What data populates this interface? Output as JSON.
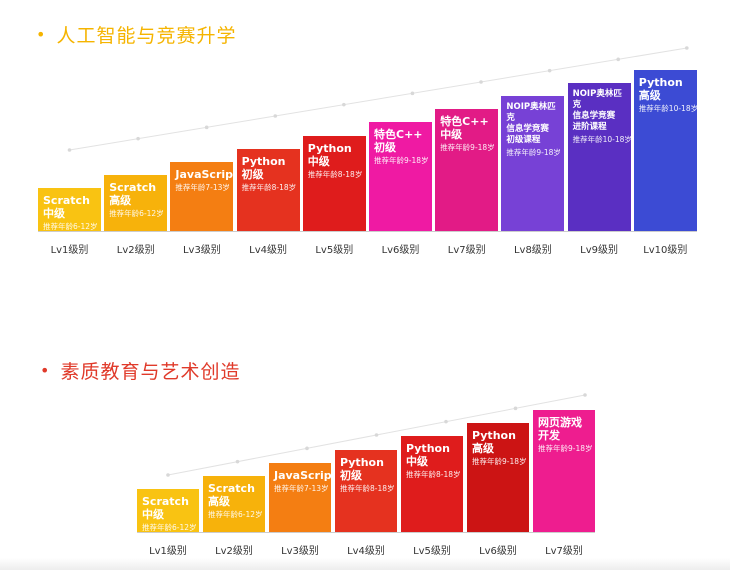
{
  "sections": [
    {
      "title": "人工智能与竞赛升学",
      "title_color": "#f5b400",
      "steps": [
        {
          "name": "Scratch\n中级",
          "age": "推荐年龄6-12岁",
          "color": "#f9c312",
          "level": "Lv1级别"
        },
        {
          "name": "Scratch\n高级",
          "age": "推荐年龄6-12岁",
          "color": "#f7b20b",
          "level": "Lv2级别"
        },
        {
          "name": "JavaScript",
          "age": "推荐年龄7-13岁",
          "color": "#f47e12",
          "level": "Lv3级别"
        },
        {
          "name": "Python\n初级",
          "age": "推荐年龄8-18岁",
          "color": "#e5321f",
          "level": "Lv4级别"
        },
        {
          "name": "Python\n中级",
          "age": "推荐年龄8-18岁",
          "color": "#df1c1c",
          "level": "Lv5级别"
        },
        {
          "name": "特色C++\n初级",
          "age": "推荐年龄9-18岁",
          "color": "#ef1aa3",
          "level": "Lv6级别"
        },
        {
          "name": "特色C++\n中级",
          "age": "推荐年龄9-18岁",
          "color": "#e21b86",
          "level": "Lv7级别"
        },
        {
          "name": "NOIP奥林匹克\n信息学竞赛\n初级课程",
          "age": "推荐年龄9-18岁",
          "color": "#7741d6",
          "level": "Lv8级别"
        },
        {
          "name": "NOIP奥林匹克\n信息学竞赛\n进阶课程",
          "age": "推荐年龄10-18岁",
          "color": "#5a2fc2",
          "level": "Lv9级别"
        },
        {
          "name": "Python\n高级",
          "age": "推荐年龄10-18岁",
          "color": "#3c4bd4",
          "level": "Lv10级别"
        }
      ]
    },
    {
      "title": "素质教育与艺术创造",
      "title_color": "#e03a2a",
      "steps": [
        {
          "name": "Scratch\n中级",
          "age": "推荐年龄6-12岁",
          "color": "#f9c312",
          "level": "Lv1级别"
        },
        {
          "name": "Scratch\n高级",
          "age": "推荐年龄6-12岁",
          "color": "#f7b20b",
          "level": "Lv2级别"
        },
        {
          "name": "JavaScript",
          "age": "推荐年龄7-13岁",
          "color": "#f47e12",
          "level": "Lv3级别"
        },
        {
          "name": "Python\n初级",
          "age": "推荐年龄8-18岁",
          "color": "#e5321f",
          "level": "Lv4级别"
        },
        {
          "name": "Python\n中级",
          "age": "推荐年龄8-18岁",
          "color": "#df1c1c",
          "level": "Lv5级别"
        },
        {
          "name": "Python\n高级",
          "age": "推荐年龄9-18岁",
          "color": "#cc1414",
          "level": "Lv6级别"
        },
        {
          "name": "网页游戏\n开发",
          "age": "推荐年龄9-18岁",
          "color": "#ee1d8f",
          "level": "Lv7级别"
        }
      ]
    }
  ]
}
